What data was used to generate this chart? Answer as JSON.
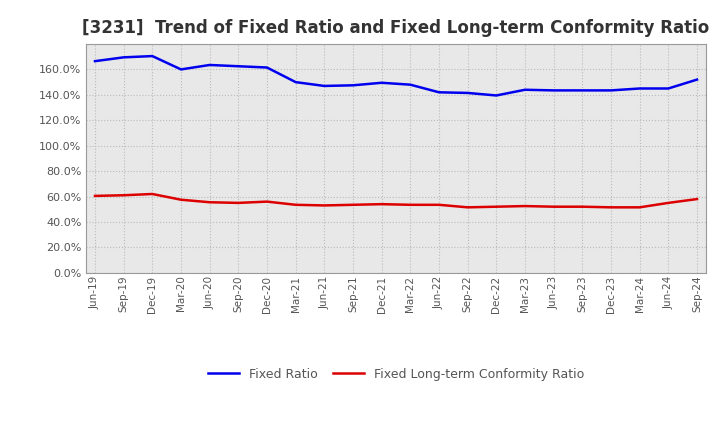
{
  "title": "[3231]  Trend of Fixed Ratio and Fixed Long-term Conformity Ratio",
  "x_labels": [
    "Jun-19",
    "Sep-19",
    "Dec-19",
    "Mar-20",
    "Jun-20",
    "Sep-20",
    "Dec-20",
    "Mar-21",
    "Jun-21",
    "Sep-21",
    "Dec-21",
    "Mar-22",
    "Jun-22",
    "Sep-22",
    "Dec-22",
    "Mar-23",
    "Jun-23",
    "Sep-23",
    "Dec-23",
    "Mar-24",
    "Jun-24",
    "Sep-24"
  ],
  "fixed_ratio": [
    166.5,
    169.5,
    170.5,
    160.0,
    163.5,
    162.5,
    161.5,
    150.0,
    147.0,
    147.5,
    149.5,
    148.0,
    142.0,
    141.5,
    139.5,
    144.0,
    143.5,
    143.5,
    143.5,
    145.0,
    145.0,
    152.0
  ],
  "fixed_lt_ratio": [
    60.5,
    61.0,
    62.0,
    57.5,
    55.5,
    55.0,
    56.0,
    53.5,
    53.0,
    53.5,
    54.0,
    53.5,
    53.5,
    51.5,
    52.0,
    52.5,
    52.0,
    52.0,
    51.5,
    51.5,
    55.0,
    58.0
  ],
  "fixed_ratio_color": "#0000EE",
  "fixed_lt_ratio_color": "#DD0000",
  "ylim": [
    0,
    180
  ],
  "yticks": [
    0,
    20,
    40,
    60,
    80,
    100,
    120,
    140,
    160
  ],
  "background_color": "#FFFFFF",
  "plot_bg_color": "#E8E8E8",
  "grid_color": "#BBBBBB",
  "title_fontsize": 12,
  "title_color": "#333333",
  "tick_color": "#555555",
  "legend_labels": [
    "Fixed Ratio",
    "Fixed Long-term Conformity Ratio"
  ]
}
